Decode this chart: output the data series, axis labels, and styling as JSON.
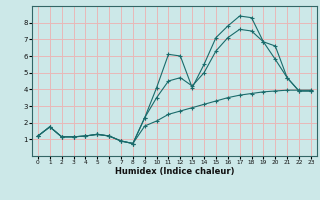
{
  "title": "",
  "xlabel": "Humidex (Indice chaleur)",
  "bg_color": "#cce8e8",
  "grid_color": "#e8b8b8",
  "line_color": "#1a6b6b",
  "xlim": [
    -0.5,
    23.5
  ],
  "ylim": [
    0,
    9
  ],
  "xticks": [
    0,
    1,
    2,
    3,
    4,
    5,
    6,
    7,
    8,
    9,
    10,
    11,
    12,
    13,
    14,
    15,
    16,
    17,
    18,
    19,
    20,
    21,
    22,
    23
  ],
  "yticks": [
    1,
    2,
    3,
    4,
    5,
    6,
    7,
    8
  ],
  "line1_x": [
    0,
    1,
    2,
    3,
    4,
    5,
    6,
    7,
    8,
    9,
    10,
    11,
    12,
    13,
    14,
    15,
    16,
    17,
    18,
    19,
    20,
    21,
    22,
    23
  ],
  "line1_y": [
    1.2,
    1.75,
    1.15,
    1.15,
    1.2,
    1.3,
    1.2,
    0.9,
    0.75,
    2.3,
    4.1,
    6.1,
    6.0,
    4.1,
    5.5,
    7.1,
    7.8,
    8.4,
    8.3,
    6.85,
    6.6,
    4.7,
    3.9,
    3.9
  ],
  "line2_x": [
    0,
    1,
    2,
    3,
    4,
    5,
    6,
    7,
    8,
    9,
    10,
    11,
    12,
    13,
    14,
    15,
    16,
    17,
    18,
    19,
    20,
    21,
    22,
    23
  ],
  "line2_y": [
    1.2,
    1.75,
    1.15,
    1.15,
    1.2,
    1.3,
    1.2,
    0.9,
    0.75,
    2.3,
    3.5,
    4.5,
    4.7,
    4.2,
    5.0,
    6.3,
    7.1,
    7.6,
    7.5,
    6.85,
    5.8,
    4.7,
    3.9,
    3.9
  ],
  "line3_x": [
    0,
    1,
    2,
    3,
    4,
    5,
    6,
    7,
    8,
    9,
    10,
    11,
    12,
    13,
    14,
    15,
    16,
    17,
    18,
    19,
    20,
    21,
    22,
    23
  ],
  "line3_y": [
    1.2,
    1.75,
    1.15,
    1.15,
    1.2,
    1.3,
    1.2,
    0.9,
    0.75,
    1.8,
    2.1,
    2.5,
    2.7,
    2.9,
    3.1,
    3.3,
    3.5,
    3.65,
    3.75,
    3.85,
    3.9,
    3.95,
    3.95,
    3.95
  ]
}
